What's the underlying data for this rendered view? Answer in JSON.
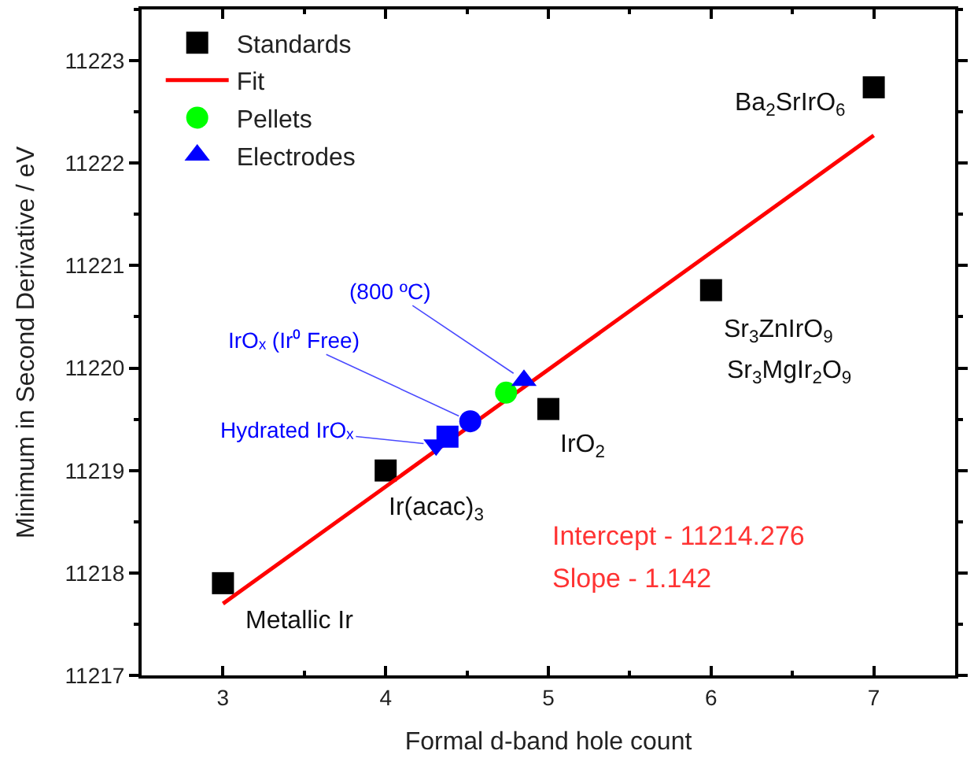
{
  "chart_data": {
    "type": "scatter",
    "xlabel": "Formal d-band hole count",
    "ylabel": "Minimum in Second Derivative / eV",
    "xlim": [
      2.5,
      7.5
    ],
    "xticks": [
      3,
      4,
      5,
      6,
      7
    ],
    "ylim": [
      11217,
      11223.5
    ],
    "yticks": [
      11217,
      11218,
      11219,
      11220,
      11221,
      11222,
      11223
    ],
    "legend": "top left",
    "grid": false,
    "series": [
      {
        "name": "Standards",
        "marker": "square",
        "color": "#000000",
        "x": [
          3,
          4,
          5,
          6,
          7
        ],
        "values": [
          11217.9,
          11219.0,
          11219.6,
          11220.76,
          11222.74
        ]
      },
      {
        "name": "Fit",
        "type": "line",
        "marker": "none",
        "line_style": "solid",
        "color": "#ff0000",
        "x": [
          3,
          7
        ],
        "values": [
          11217.7,
          11222.27
        ]
      },
      {
        "name": "Pellets",
        "marker": "circle",
        "color": "#00ff00",
        "x": [
          4.74
        ],
        "values": [
          11219.76
        ]
      },
      {
        "name": "Electrodes",
        "marker": [
          "triangle",
          "circle",
          "square",
          "triangle-down"
        ],
        "color": "#0000ff",
        "x": [
          4.85,
          4.52,
          4.38,
          4.31
        ],
        "values": [
          11219.88,
          11219.48,
          11219.33,
          11219.25
        ]
      }
    ],
    "annotations": [
      {
        "text": "Metallic Ir",
        "x": 3,
        "y": 11217.9
      },
      {
        "text": "Ir(acac)$_{3}$",
        "x": 4,
        "y": 11219.0
      },
      {
        "text": "IrO$_{2}$",
        "x": 5,
        "y": 11219.6
      },
      {
        "text": "Sr$_{3}$ZnIrO$_{9}$",
        "x": 6,
        "y": 11220.76
      },
      {
        "text": "Ba$_{2}$SrIrO$_{6}$",
        "x": 7,
        "y": 11222.74
      },
      {
        "text": "(800 ºC)",
        "x": 4.85,
        "y": 11219.88
      },
      {
        "text": "IrOₓ (Ir⁰ Free)",
        "x": 4.52,
        "y": 11219.48
      },
      {
        "text": "Hydrated IrOₓ",
        "x": 4.31,
        "y": 11219.25
      },
      "Sr$_{3}$MgIr$_{2}$O$_{9}$",
      "Intercept - 11214.276",
      "Slope - 1.142"
    ]
  }
}
